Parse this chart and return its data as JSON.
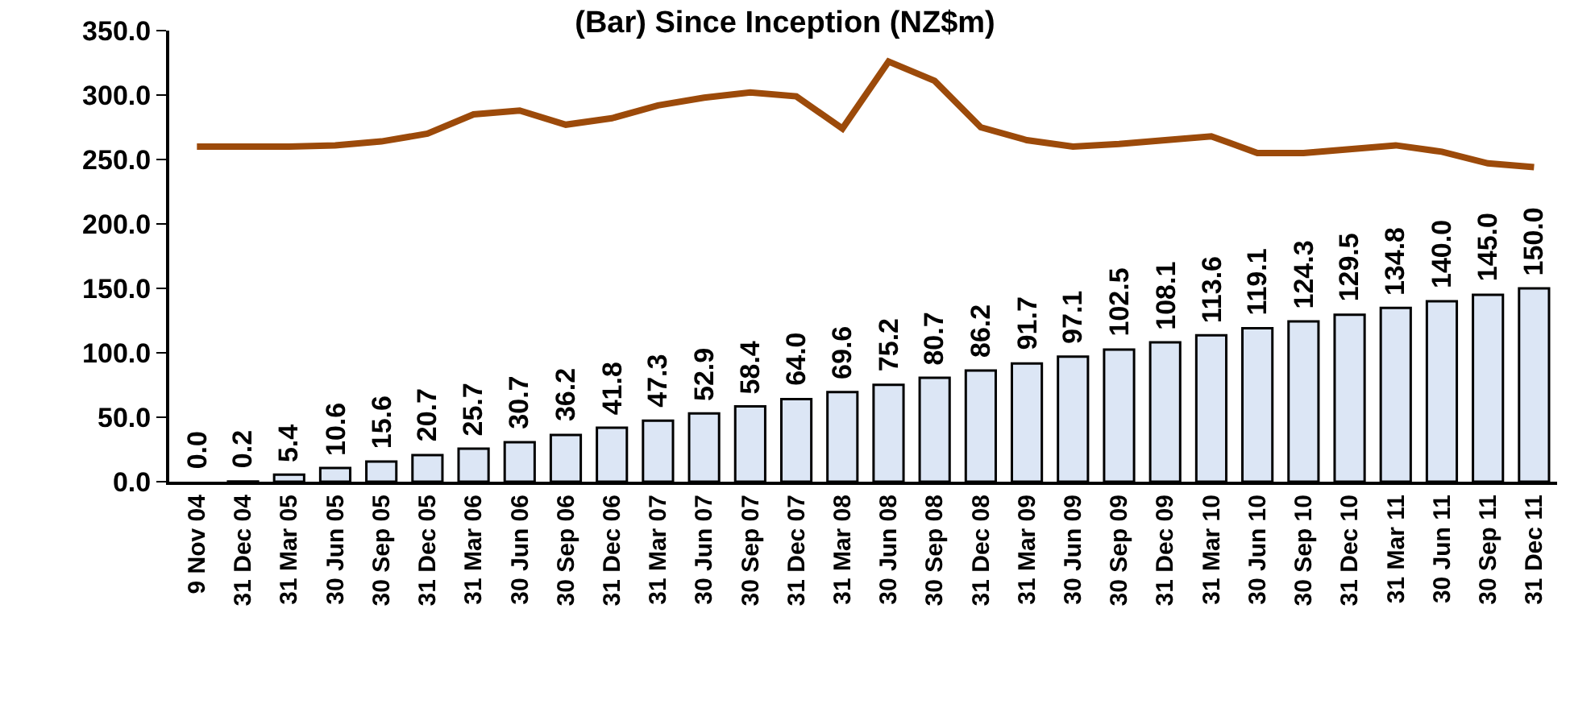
{
  "chart_data": {
    "type": "bar",
    "title": "(Bar) Since Inception (NZ$m)",
    "categories": [
      "9 Nov 04",
      "31 Dec 04",
      "31 Mar 05",
      "30 Jun 05",
      "30 Sep 05",
      "31 Dec 05",
      "31 Mar 06",
      "30 Jun 06",
      "30 Sep 06",
      "31 Dec 06",
      "31 Mar 07",
      "30 Jun 07",
      "30 Sep 07",
      "31 Dec 07",
      "31 Mar 08",
      "30 Jun 08",
      "30 Sep 08",
      "31 Dec 08",
      "31 Mar 09",
      "30 Jun 09",
      "30 Sep 09",
      "31 Dec 09",
      "31 Mar 10",
      "30 Jun 10",
      "30 Sep 10",
      "31 Dec 10",
      "31 Mar 11",
      "30 Jun 11",
      "30 Sep 11",
      "31 Dec 11"
    ],
    "series": [
      {
        "color": "#dce6f5",
        "values": [
          0.0,
          0.2,
          5.4,
          10.6,
          15.6,
          20.7,
          25.7,
          30.7,
          36.2,
          41.8,
          47.3,
          52.9,
          58.4,
          64.0,
          69.6,
          75.2,
          80.7,
          86.2,
          91.7,
          97.1,
          102.5,
          108.1,
          113.6,
          119.1,
          124.3,
          129.5,
          134.8,
          140.0,
          145.0,
          150.0
        ],
        "value_labels": [
          "0.0",
          "0.2",
          "5.4",
          "10.6",
          "15.6",
          "20.7",
          "25.7",
          "30.7",
          "36.2",
          "41.8",
          "47.3",
          "52.9",
          "58.4",
          "64.0",
          "69.6",
          "75.2",
          "80.7",
          "86.2",
          "91.7",
          "97.1",
          "102.5",
          "108.1",
          "113.6",
          "119.1",
          "124.3",
          "129.5",
          "134.8",
          "140.0",
          "145.0",
          "150.0"
        ]
      },
      {
        "type": "line",
        "color": "#9c4a0a",
        "values": [
          260,
          260,
          260,
          261,
          264,
          270,
          285,
          288,
          277,
          282,
          292,
          298,
          302,
          299,
          274,
          326,
          311,
          275,
          265,
          260,
          262,
          265,
          268,
          255,
          255,
          258,
          261,
          256,
          247,
          244
        ]
      }
    ],
    "ylim": [
      0,
      350
    ],
    "yticks": [
      {
        "value": 0,
        "label": "0.0"
      },
      {
        "value": 50,
        "label": "50.0"
      },
      {
        "value": 100,
        "label": "100.0"
      },
      {
        "value": 150,
        "label": "150.0"
      },
      {
        "value": 200,
        "label": "200.0"
      },
      {
        "value": 250,
        "label": "250.0"
      },
      {
        "value": 300,
        "label": "300.0"
      },
      {
        "value": 350,
        "label": "350.0"
      }
    ]
  }
}
